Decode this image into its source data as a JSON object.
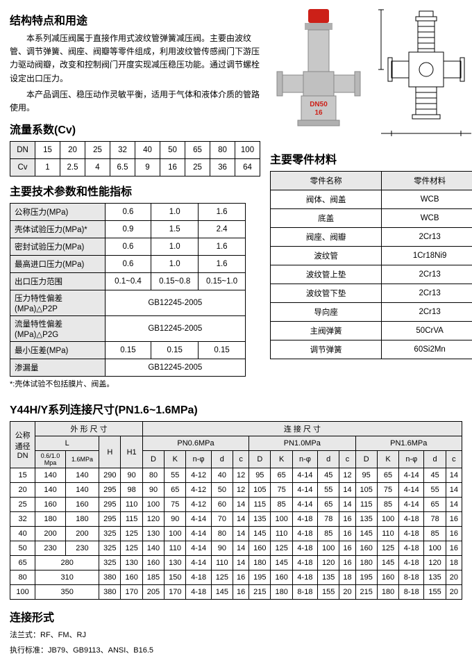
{
  "section1_title": "结构特点和用途",
  "intro": {
    "p1": "本系列减压阀属于直接作用式波纹管弹簧减压阀。主要由波纹管、调节弹簧、阀座、阀瓣等零件组成，利用波纹管传感阀门下游压力驱动阀瓣，改变和控制阀门开度实现减压稳压功能。通过调节螺栓设定出口压力。",
    "p2": "本产品调压、稳压动作灵敏平衡，适用于气体和液体介质的管路使用。"
  },
  "photo_label": "DN50\n16",
  "cv": {
    "title": "流量系数(Cv)",
    "headers": [
      "DN",
      "15",
      "20",
      "25",
      "32",
      "40",
      "50",
      "65",
      "80",
      "100"
    ],
    "row_label": "Cv",
    "values": [
      "1",
      "2.5",
      "4",
      "6.5",
      "9",
      "16",
      "25",
      "36",
      "64"
    ]
  },
  "tech": {
    "title": "主要技术参数和性能指标",
    "cols": [
      "0.6",
      "1.0",
      "1.6"
    ],
    "rows": [
      {
        "label": "公称压力(MPa)",
        "v": [
          "0.6",
          "1.0",
          "1.6"
        ]
      },
      {
        "label": "壳体试验压力(MPa)*",
        "v": [
          "0.9",
          "1.5",
          "2.4"
        ]
      },
      {
        "label": "密封试验压力(MPa)",
        "v": [
          "0.6",
          "1.0",
          "1.6"
        ]
      },
      {
        "label": "最高进口压力(MPa)",
        "v": [
          "0.6",
          "1.0",
          "1.6"
        ]
      },
      {
        "label": "出口压力范围",
        "v": [
          "0.1~0.4",
          "0.15~0.8",
          "0.15~1.0"
        ]
      },
      {
        "label": "压力特性偏差(MPa)△P2P",
        "v_merged": "GB12245-2005"
      },
      {
        "label": "流量特性偏差(MPa)△P2G",
        "v_merged": "GB12245-2005"
      },
      {
        "label": "最小压差(MPa)",
        "v": [
          "0.15",
          "0.15",
          "0.15"
        ]
      },
      {
        "label": "渗漏量",
        "v_merged": "GB12245-2005"
      }
    ],
    "footnote": "*:壳体试验不包括膜片、阀盖。"
  },
  "materials": {
    "title": "主要零件材料",
    "head": [
      "零件名称",
      "零件材料"
    ],
    "rows": [
      [
        "阀体、阀盖",
        "WCB"
      ],
      [
        "底盖",
        "WCB"
      ],
      [
        "阀座、阀瓣",
        "2Cr13"
      ],
      [
        "波纹管",
        "1Cr18Ni9"
      ],
      [
        "波纹管上垫",
        "2Cr13"
      ],
      [
        "波纹管下垫",
        "2Cr13"
      ],
      [
        "导向座",
        "2Cr13"
      ],
      [
        "主阀弹簧",
        "50CrVA"
      ],
      [
        "调节弹簧",
        "60Si2Mn"
      ]
    ]
  },
  "dims": {
    "title": "Y44H/Y系列连接尺寸(PN1.6~1.6MPa)",
    "h1_group1": "外 形 尺 寸",
    "h1_group2": "连 接 尺 寸",
    "h2_L": "L",
    "h2_H": "H",
    "h2_H1": "H1",
    "h2_pn06": "PN0.6MPa",
    "h2_pn10": "PN1.0MPa",
    "h2_pn16": "PN1.6MPa",
    "h3_L1": "0.6/1.0\nMpa",
    "h3_L2": "1.6MPa",
    "dn_label": "公称\n通径\nDN",
    "sub_cols": [
      "D",
      "K",
      "n-φ",
      "d",
      "c"
    ],
    "rows": [
      {
        "dn": "15",
        "L": [
          "140",
          "140"
        ],
        "H": "290",
        "H1": "90",
        "pn06": [
          "80",
          "55",
          "4-12",
          "40",
          "12"
        ],
        "pn10": [
          "95",
          "65",
          "4-14",
          "45",
          "12"
        ],
        "pn16": [
          "95",
          "65",
          "4-14",
          "45",
          "14"
        ]
      },
      {
        "dn": "20",
        "L": [
          "140",
          "140"
        ],
        "H": "295",
        "H1": "98",
        "pn06": [
          "90",
          "65",
          "4-12",
          "50",
          "12"
        ],
        "pn10": [
          "105",
          "75",
          "4-14",
          "55",
          "14"
        ],
        "pn16": [
          "105",
          "75",
          "4-14",
          "55",
          "14"
        ]
      },
      {
        "dn": "25",
        "L": [
          "160",
          "160"
        ],
        "H": "295",
        "H1": "110",
        "pn06": [
          "100",
          "75",
          "4-12",
          "60",
          "14"
        ],
        "pn10": [
          "115",
          "85",
          "4-14",
          "65",
          "14"
        ],
        "pn16": [
          "115",
          "85",
          "4-14",
          "65",
          "14"
        ]
      },
      {
        "dn": "32",
        "L": [
          "180",
          "180"
        ],
        "H": "295",
        "H1": "115",
        "pn06": [
          "120",
          "90",
          "4-14",
          "70",
          "14"
        ],
        "pn10": [
          "135",
          "100",
          "4-18",
          "78",
          "16"
        ],
        "pn16": [
          "135",
          "100",
          "4-18",
          "78",
          "16"
        ]
      },
      {
        "dn": "40",
        "L": [
          "200",
          "200"
        ],
        "H": "325",
        "H1": "125",
        "pn06": [
          "130",
          "100",
          "4-14",
          "80",
          "14"
        ],
        "pn10": [
          "145",
          "110",
          "4-18",
          "85",
          "16"
        ],
        "pn16": [
          "145",
          "110",
          "4-18",
          "85",
          "16"
        ]
      },
      {
        "dn": "50",
        "L": [
          "230",
          "230"
        ],
        "H": "325",
        "H1": "125",
        "pn06": [
          "140",
          "110",
          "4-14",
          "90",
          "14"
        ],
        "pn10": [
          "160",
          "125",
          "4-18",
          "100",
          "16"
        ],
        "pn16": [
          "160",
          "125",
          "4-18",
          "100",
          "16"
        ]
      },
      {
        "dn": "65",
        "L_merged": "280",
        "H": "325",
        "H1": "130",
        "pn06": [
          "160",
          "130",
          "4-14",
          "110",
          "14"
        ],
        "pn10": [
          "180",
          "145",
          "4-18",
          "120",
          "16"
        ],
        "pn16": [
          "180",
          "145",
          "4-18",
          "120",
          "18"
        ]
      },
      {
        "dn": "80",
        "L_merged": "310",
        "H": "380",
        "H1": "160",
        "pn06": [
          "185",
          "150",
          "4-18",
          "125",
          "16"
        ],
        "pn10": [
          "195",
          "160",
          "4-18",
          "135",
          "18"
        ],
        "pn16": [
          "195",
          "160",
          "8-18",
          "135",
          "20"
        ]
      },
      {
        "dn": "100",
        "L_merged": "350",
        "H": "380",
        "H1": "170",
        "pn06": [
          "205",
          "170",
          "4-18",
          "145",
          "16"
        ],
        "pn10": [
          "215",
          "180",
          "8-18",
          "155",
          "20"
        ],
        "pn16": [
          "215",
          "180",
          "8-18",
          "155",
          "20"
        ]
      }
    ]
  },
  "conn": {
    "title": "连接形式",
    "line1": "法兰式：RF、FM、RJ",
    "line2": "执行标准：JB79、GB9113、ANSI、B16.5"
  }
}
